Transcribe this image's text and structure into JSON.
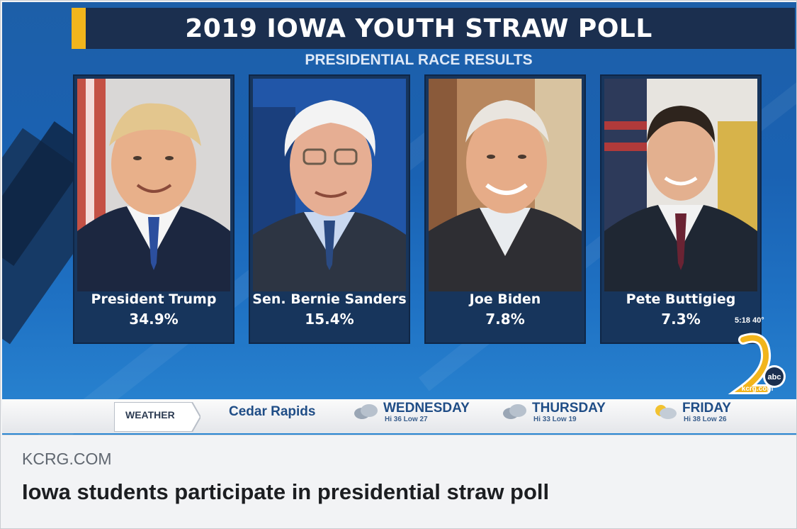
{
  "graphic": {
    "title": "2019 IOWA YOUTH STRAW POLL",
    "subtitle": "PRESIDENTIAL RACE RESULTS",
    "candidates": [
      {
        "name": "President Trump",
        "percent": "34.9%"
      },
      {
        "name": "Sen. Bernie Sanders",
        "percent": "15.4%"
      },
      {
        "name": "Joe Biden",
        "percent": "7.8%"
      },
      {
        "name": "Pete Buttigieg",
        "percent": "7.3%"
      }
    ],
    "clock": "5:18  40°",
    "logo_url_text": "kcrg.com",
    "colors": {
      "title_bar": "#1b2f4f",
      "accent": "#f2b51c",
      "background": "#1a62b3"
    }
  },
  "weather": {
    "label": "WEATHER",
    "city": "Cedar Rapids",
    "days": [
      {
        "day": "WEDNESDAY",
        "detail": "Hi 36 Low 27",
        "icon": "cloud-icon"
      },
      {
        "day": "THURSDAY",
        "detail": "Hi 33 Low 19",
        "icon": "cloud-icon"
      },
      {
        "day": "FRIDAY",
        "detail": "Hi 38 Low 26",
        "icon": "partly-sunny-icon"
      }
    ]
  },
  "link_preview": {
    "source": "KCRG.COM",
    "headline": "Iowa students participate in presidential straw poll"
  }
}
